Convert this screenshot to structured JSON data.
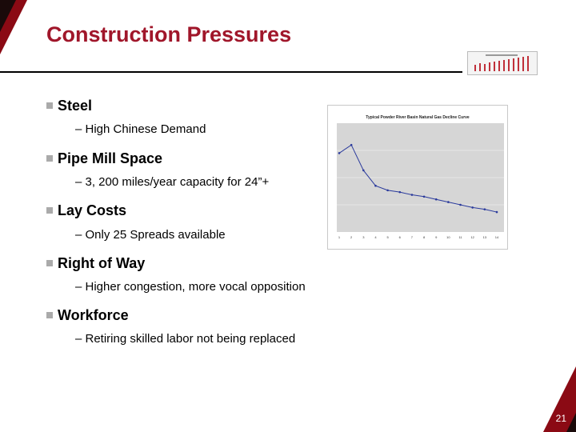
{
  "slide": {
    "title": "Construction Pressures",
    "page_number": "21",
    "accent_color": "#a0162a",
    "corner_color": "#8b0a14"
  },
  "bullets": [
    {
      "label": "Steel",
      "sub": "– High Chinese Demand"
    },
    {
      "label": "Pipe Mill Space",
      "sub": "– 3, 200 miles/year capacity for 24”+"
    },
    {
      "label": "Lay Costs",
      "sub": "– Only 25 Spreads available"
    },
    {
      "label": "Right of Way",
      "sub": "– Higher congestion, more vocal opposition"
    },
    {
      "label": "Workforce",
      "sub": "– Retiring skilled labor not being replaced"
    }
  ],
  "chart_data": {
    "type": "line",
    "title": "Typical Powder River Basin Natural Gas Decline Curve",
    "xlabel": "",
    "ylabel": "",
    "categories": [
      "1",
      "2",
      "3",
      "4",
      "5",
      "6",
      "7",
      "8",
      "9",
      "10",
      "11",
      "12",
      "13",
      "14"
    ],
    "series": [
      {
        "values": [
          8.7,
          9.6,
          6.8,
          5.1,
          4.6,
          4.4,
          4.1,
          3.9,
          3.6,
          3.3,
          3.0,
          2.7,
          2.5,
          2.2
        ]
      }
    ],
    "ylim": [
      0,
      12
    ],
    "grid": true,
    "series_color": "#2a3a9c",
    "plot_background": "#d6d6d6"
  }
}
